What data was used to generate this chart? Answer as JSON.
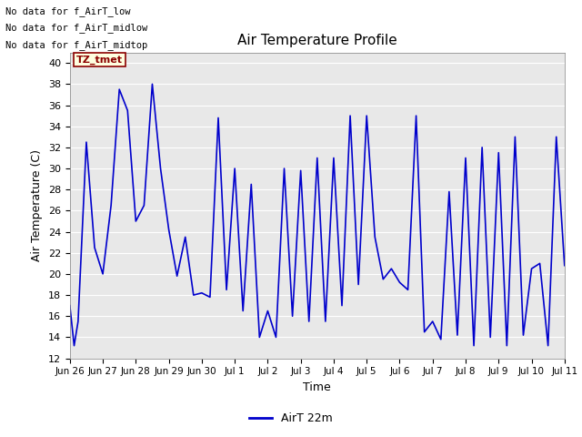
{
  "title": "Air Temperature Profile",
  "xlabel": "Time",
  "ylabel": "Air Temperature (C)",
  "ylim": [
    12,
    41
  ],
  "yticks": [
    12,
    14,
    16,
    18,
    20,
    22,
    24,
    26,
    28,
    30,
    32,
    34,
    36,
    38,
    40
  ],
  "line_color": "#0000CC",
  "line_width": 1.2,
  "fig_bg_color": "#ffffff",
  "plot_bg_color": "#E8E8E8",
  "grid_color": "#ffffff",
  "legend_label": "AirT 22m",
  "annotations_text": [
    "No data for f_AirT_low",
    "No data for f_AirT_midlow",
    "No data for f_AirT_midtop"
  ],
  "tz_label": "TZ_tmet",
  "xtick_labels": [
    "Jun 26",
    "Jun 27",
    "Jun 28",
    "Jun 29",
    "Jun 30",
    "Jul 1",
    "Jul 2",
    "Jul 3",
    "Jul 4",
    "Jul 5",
    "Jul 6",
    "Jul 7",
    "Jul 8",
    "Jul 9",
    "Jul 10",
    "Jul 11"
  ],
  "xlim": [
    0,
    15
  ],
  "x_values": [
    0.0,
    0.13,
    0.25,
    0.5,
    0.75,
    1.0,
    1.25,
    1.5,
    1.75,
    2.0,
    2.25,
    2.5,
    2.75,
    3.0,
    3.25,
    3.5,
    3.75,
    4.0,
    4.25,
    4.5,
    4.75,
    5.0,
    5.25,
    5.5,
    5.75,
    6.0,
    6.25,
    6.5,
    6.75,
    7.0,
    7.25,
    7.5,
    7.75,
    8.0,
    8.25,
    8.5,
    8.75,
    9.0,
    9.25,
    9.5,
    9.75,
    10.0,
    10.25,
    10.5,
    10.75,
    11.0,
    11.25,
    11.5,
    11.75,
    12.0,
    12.25,
    12.5,
    12.75,
    13.0,
    13.25,
    13.5,
    13.75,
    14.0,
    14.25,
    14.5,
    14.75,
    15.0
  ],
  "y_values": [
    17.0,
    13.2,
    15.5,
    32.5,
    22.5,
    20.0,
    26.5,
    37.5,
    35.5,
    25.0,
    26.5,
    38.0,
    30.0,
    24.2,
    19.8,
    23.5,
    18.0,
    18.2,
    17.8,
    34.8,
    18.5,
    30.0,
    16.5,
    28.5,
    14.0,
    16.5,
    14.0,
    30.0,
    16.0,
    29.8,
    15.5,
    31.0,
    15.5,
    31.0,
    17.0,
    35.0,
    19.0,
    35.0,
    23.5,
    19.5,
    20.5,
    19.2,
    18.5,
    35.0,
    14.5,
    15.5,
    13.8,
    27.8,
    14.2,
    31.0,
    13.2,
    32.0,
    14.0,
    31.5,
    13.2,
    33.0,
    14.2,
    20.5,
    21.0,
    13.2,
    33.0,
    20.8
  ]
}
